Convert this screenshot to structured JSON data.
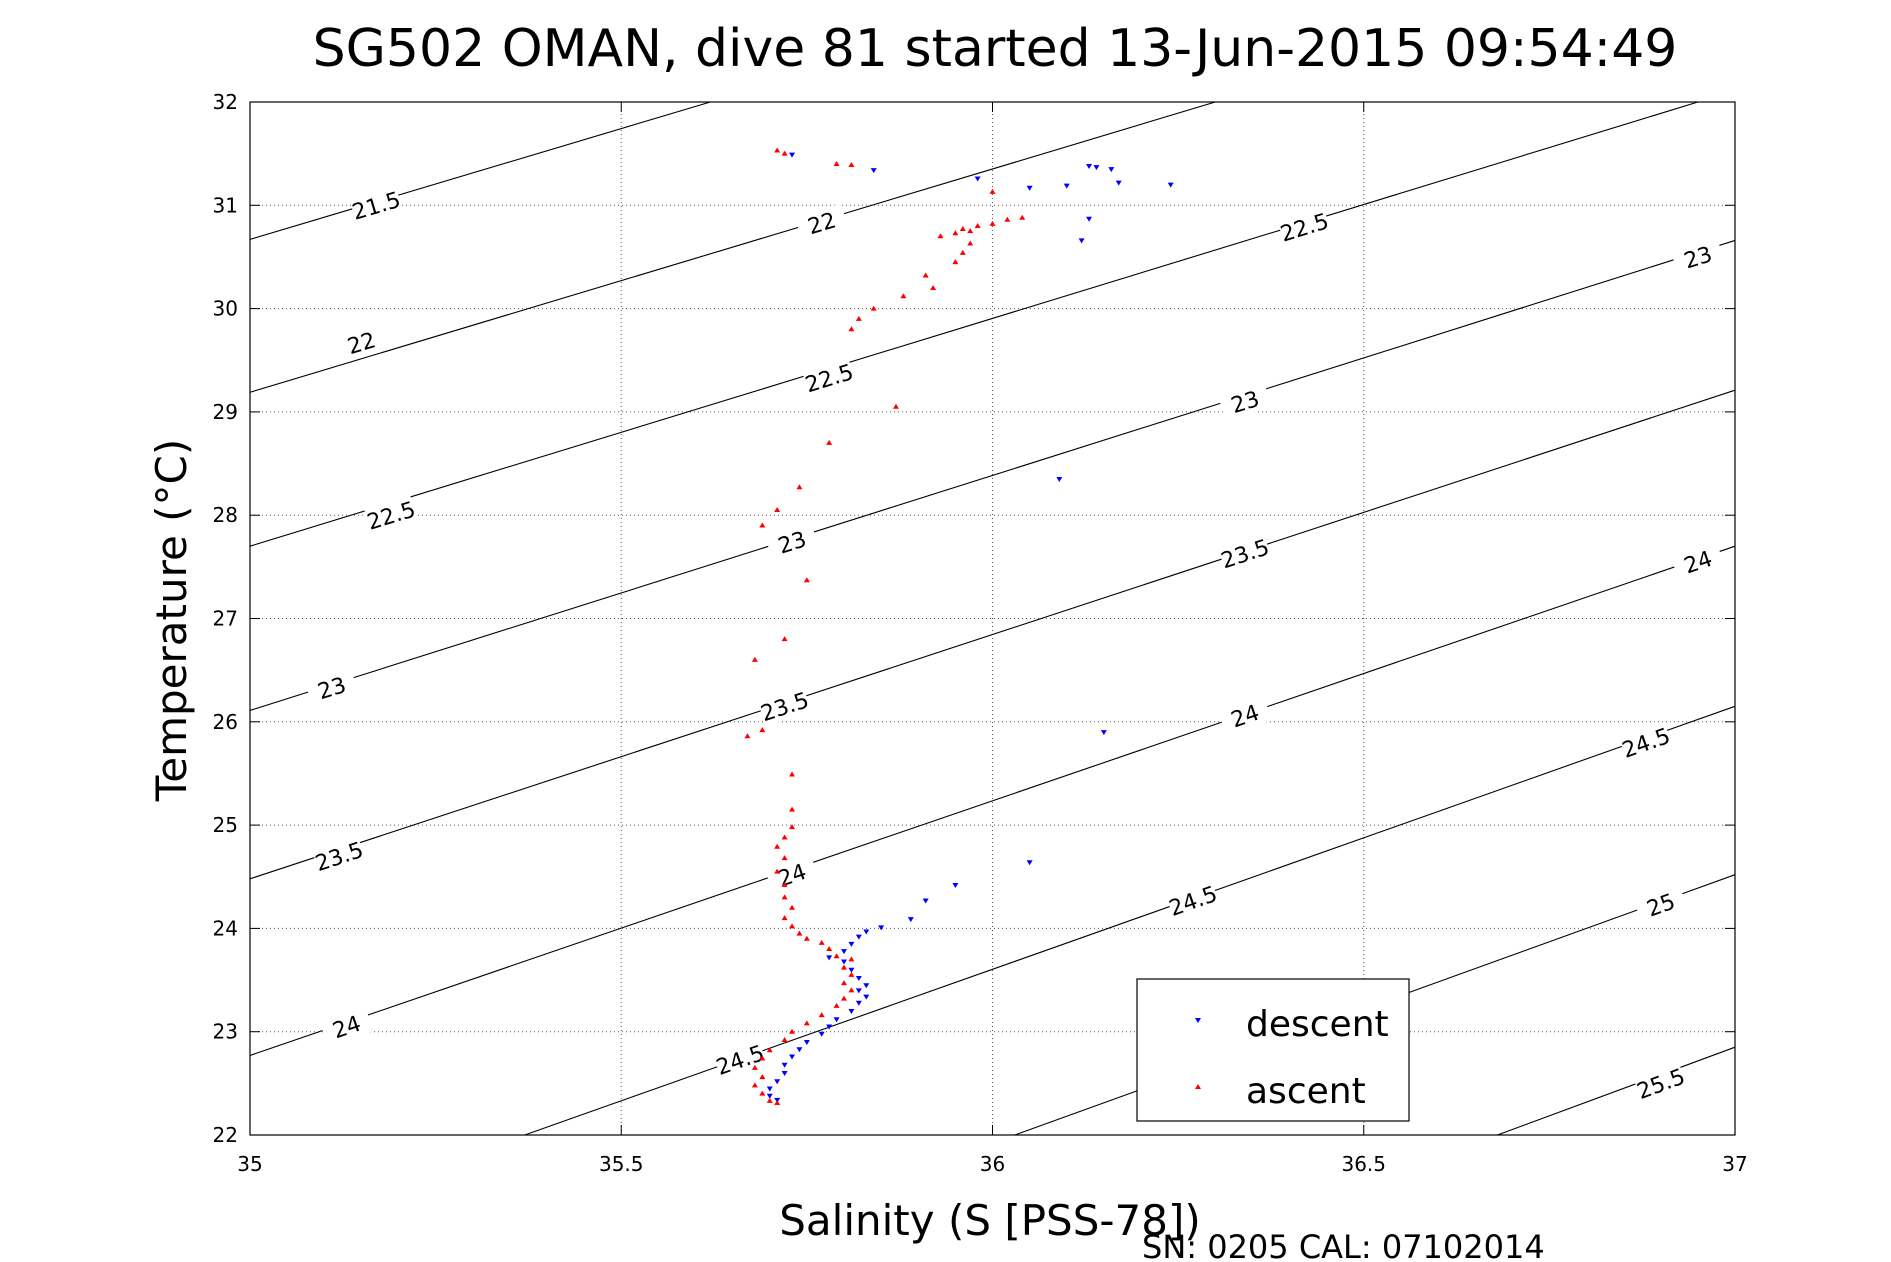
{
  "chart_data": {
    "type": "scatter",
    "title": "SG502 OMAN, dive 81 started 13-Jun-2015 09:54:49",
    "xlabel": "Salinity (S [PSS-78])",
    "ylabel": "Temperature (°C)",
    "footer": "SN: 0205  CAL: 07102014",
    "xlim": [
      35,
      37
    ],
    "ylim": [
      22,
      32
    ],
    "xticks": [
      35,
      35.5,
      36,
      36.5,
      37
    ],
    "xtick_labels": [
      "35",
      "35.5",
      "36",
      "36.5",
      "37"
    ],
    "yticks": [
      22,
      23,
      24,
      25,
      26,
      27,
      28,
      29,
      30,
      31,
      32
    ],
    "ytick_labels": [
      "22",
      "23",
      "24",
      "25",
      "26",
      "27",
      "28",
      "29",
      "30",
      "31",
      "32"
    ],
    "grid": true,
    "legend_position": "bottom-right",
    "density_contours": [
      {
        "level": "21.5",
        "points": [
          [
            35.0,
            30.67
          ],
          [
            35.62,
            32.0
          ]
        ],
        "label_at": [
          35.17,
          31.0
        ]
      },
      {
        "level": "22",
        "points": [
          [
            35.0,
            29.19
          ],
          [
            36.3,
            32.0
          ]
        ],
        "label_at": [
          35.15,
          29.67
        ],
        "label2_at": [
          35.77,
          30.83
        ]
      },
      {
        "level": "22.5",
        "points": [
          [
            35.0,
            27.7
          ],
          [
            36.95,
            32.0
          ]
        ],
        "label_at": [
          35.19,
          28.0
        ],
        "label2_at": [
          35.78,
          29.33
        ],
        "label3_at": [
          36.42,
          30.79
        ]
      },
      {
        "level": "23",
        "points": [
          [
            35.0,
            26.11
          ],
          [
            37.0,
            30.66
          ]
        ],
        "label_at": [
          35.11,
          26.33
        ],
        "label2_at": [
          35.73,
          27.74
        ],
        "label3_at": [
          36.34,
          29.1
        ],
        "label4_at": [
          36.95,
          30.5
        ]
      },
      {
        "level": "23.5",
        "points": [
          [
            35.0,
            24.48
          ],
          [
            37.0,
            29.21
          ]
        ],
        "label_at": [
          35.12,
          24.7
        ],
        "label2_at": [
          35.72,
          26.15
        ],
        "label3_at": [
          36.34,
          27.63
        ]
      },
      {
        "level": "24",
        "points": [
          [
            35.0,
            22.77
          ],
          [
            37.0,
            27.7
          ]
        ],
        "label_at": [
          35.13,
          23.05
        ],
        "label2_at": [
          35.73,
          24.52
        ],
        "label3_at": [
          36.34,
          26.06
        ],
        "label4_at": [
          36.95,
          27.55
        ]
      },
      {
        "level": "24.5",
        "points": [
          [
            35.37,
            22.0
          ],
          [
            37.0,
            26.15
          ]
        ],
        "label_at": [
          35.66,
          22.73
        ],
        "label2_at": [
          36.27,
          24.27
        ],
        "label3_at": [
          36.88,
          25.8
        ]
      },
      {
        "level": "25",
        "points": [
          [
            36.03,
            22.0
          ],
          [
            37.0,
            24.52
          ]
        ],
        "label_at": [
          36.9,
          24.23
        ]
      },
      {
        "level": "25.5",
        "points": [
          [
            36.68,
            22.0
          ],
          [
            37.0,
            22.85
          ]
        ],
        "label_at": [
          36.9,
          22.5
        ]
      }
    ],
    "series": [
      {
        "name": "descent",
        "color": "#0000ff",
        "marker": "triangle-down",
        "points": [
          [
            35.73,
            31.49
          ],
          [
            35.84,
            31.34
          ],
          [
            35.98,
            31.26
          ],
          [
            36.05,
            31.17
          ],
          [
            36.1,
            31.19
          ],
          [
            36.13,
            31.38
          ],
          [
            36.14,
            31.37
          ],
          [
            36.16,
            31.35
          ],
          [
            36.17,
            31.22
          ],
          [
            36.24,
            31.2
          ],
          [
            36.13,
            30.87
          ],
          [
            36.12,
            30.66
          ],
          [
            36.09,
            28.35
          ],
          [
            36.15,
            25.9
          ],
          [
            36.05,
            24.64
          ],
          [
            35.95,
            24.42
          ],
          [
            35.91,
            24.27
          ],
          [
            35.89,
            24.09
          ],
          [
            35.85,
            24.01
          ],
          [
            35.83,
            23.97
          ],
          [
            35.82,
            23.92
          ],
          [
            35.81,
            23.85
          ],
          [
            35.8,
            23.78
          ],
          [
            35.78,
            23.72
          ],
          [
            35.8,
            23.68
          ],
          [
            35.81,
            23.6
          ],
          [
            35.82,
            23.52
          ],
          [
            35.83,
            23.45
          ],
          [
            35.82,
            23.4
          ],
          [
            35.83,
            23.34
          ],
          [
            35.82,
            23.28
          ],
          [
            35.81,
            23.2
          ],
          [
            35.79,
            23.12
          ],
          [
            35.78,
            23.05
          ],
          [
            35.77,
            22.98
          ],
          [
            35.75,
            22.9
          ],
          [
            35.74,
            22.83
          ],
          [
            35.73,
            22.76
          ],
          [
            35.72,
            22.68
          ],
          [
            35.72,
            22.6
          ],
          [
            35.71,
            22.52
          ],
          [
            35.7,
            22.45
          ],
          [
            35.7,
            22.38
          ],
          [
            35.71,
            22.34
          ]
        ]
      },
      {
        "name": "ascent",
        "color": "#ff0000",
        "marker": "triangle-up",
        "points": [
          [
            35.71,
            31.53
          ],
          [
            35.72,
            31.5
          ],
          [
            35.81,
            31.39
          ],
          [
            35.79,
            31.4
          ],
          [
            36.0,
            31.13
          ],
          [
            36.04,
            30.88
          ],
          [
            36.02,
            30.86
          ],
          [
            36.0,
            30.82
          ],
          [
            35.98,
            30.8
          ],
          [
            35.96,
            30.77
          ],
          [
            35.97,
            30.75
          ],
          [
            35.95,
            30.73
          ],
          [
            35.93,
            30.7
          ],
          [
            35.97,
            30.63
          ],
          [
            35.96,
            30.54
          ],
          [
            35.95,
            30.45
          ],
          [
            35.91,
            30.32
          ],
          [
            35.92,
            30.2
          ],
          [
            35.88,
            30.12
          ],
          [
            35.84,
            30.0
          ],
          [
            35.82,
            29.9
          ],
          [
            35.81,
            29.8
          ],
          [
            35.87,
            29.05
          ],
          [
            35.78,
            28.7
          ],
          [
            35.74,
            28.27
          ],
          [
            35.71,
            28.05
          ],
          [
            35.69,
            27.9
          ],
          [
            35.75,
            27.37
          ],
          [
            35.72,
            26.8
          ],
          [
            35.68,
            26.6
          ],
          [
            35.69,
            25.92
          ],
          [
            35.67,
            25.86
          ],
          [
            35.73,
            25.49
          ],
          [
            35.73,
            25.15
          ],
          [
            35.73,
            24.98
          ],
          [
            35.72,
            24.88
          ],
          [
            35.71,
            24.79
          ],
          [
            35.72,
            24.68
          ],
          [
            35.71,
            24.55
          ],
          [
            35.72,
            24.42
          ],
          [
            35.72,
            24.3
          ],
          [
            35.73,
            24.2
          ],
          [
            35.72,
            24.1
          ],
          [
            35.73,
            24.02
          ],
          [
            35.74,
            23.95
          ],
          [
            35.75,
            23.9
          ],
          [
            35.77,
            23.86
          ],
          [
            35.78,
            23.8
          ],
          [
            35.79,
            23.73
          ],
          [
            35.81,
            23.7
          ],
          [
            35.8,
            23.62
          ],
          [
            35.81,
            23.55
          ],
          [
            35.8,
            23.47
          ],
          [
            35.81,
            23.4
          ],
          [
            35.8,
            23.32
          ],
          [
            35.79,
            23.25
          ],
          [
            35.77,
            23.16
          ],
          [
            35.75,
            23.08
          ],
          [
            35.73,
            23.0
          ],
          [
            35.72,
            22.92
          ],
          [
            35.7,
            22.82
          ],
          [
            35.69,
            22.74
          ],
          [
            35.68,
            22.65
          ],
          [
            35.69,
            22.56
          ],
          [
            35.68,
            22.48
          ],
          [
            35.69,
            22.4
          ],
          [
            35.7,
            22.33
          ],
          [
            35.71,
            22.31
          ]
        ]
      }
    ]
  }
}
